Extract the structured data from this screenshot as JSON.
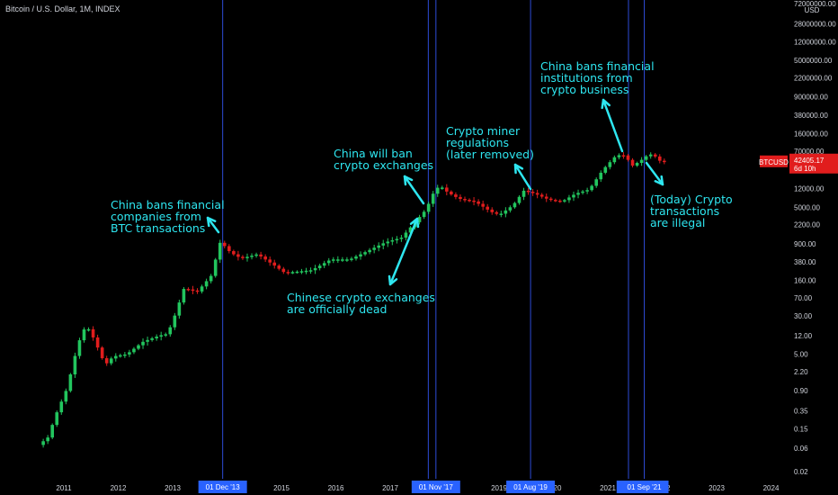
{
  "header": {
    "title": "Bitcoin / U.S. Dollar, 1M, INDEX"
  },
  "price_badge": {
    "symbol": "BTCUSD",
    "price": "42405.17",
    "countdown": "6d 10h"
  },
  "colors": {
    "up": "#22c55e",
    "down": "#e11d1d",
    "annotation": "#2ee6f0",
    "vline": "#2d4bd6",
    "badge": "#e11d1d",
    "label_bg": "#2962ff"
  },
  "chart_data": {
    "type": "candlestick",
    "y_scale": "log",
    "ylabel": "USD",
    "ylim": [
      0.015,
      140000000
    ],
    "xlim": [
      2010.55,
      2024.6
    ],
    "y_ticks": [
      "72000000.00",
      "28000000.00",
      "12000000.00",
      "5000000.00",
      "2200000.00",
      "900000.00",
      "380000.00",
      "160000.00",
      "70000.00",
      "28000.00",
      "12000.00",
      "5000.00",
      "2200.00",
      "900.00",
      "380.00",
      "160.00",
      "70.00",
      "30.00",
      "12.00",
      "5.00",
      "2.20",
      "0.90",
      "0.35",
      "0.15",
      "0.06",
      "0.02"
    ],
    "x_ticks": [
      "2011",
      "2012",
      "2013",
      "2014",
      "2015",
      "2016",
      "2017",
      "2018",
      "2019",
      "2020",
      "2021",
      "2022",
      "2023",
      "2024"
    ],
    "x_tick_positions": [
      2011,
      2012,
      2013,
      2014,
      2015,
      2016,
      2017,
      2018,
      2019,
      2020,
      2021,
      2022,
      2023,
      2024
    ],
    "vertical_lines": [
      {
        "x": 2013.92,
        "label": "01 Dec '13"
      },
      {
        "x": 2017.7,
        "label": "0"
      },
      {
        "x": 2017.84,
        "label": "01 Nov '17"
      },
      {
        "x": 2019.58,
        "label": "01 Aug '19"
      },
      {
        "x": 2021.38,
        "label": "01 M"
      },
      {
        "x": 2021.67,
        "label": "01 Sep '21"
      }
    ],
    "anchors": [
      [
        2010.58,
        0.07
      ],
      [
        2010.75,
        0.1
      ],
      [
        2010.9,
        0.3
      ],
      [
        2011.1,
        1.0
      ],
      [
        2011.3,
        8
      ],
      [
        2011.45,
        20
      ],
      [
        2011.6,
        10
      ],
      [
        2011.8,
        3
      ],
      [
        2011.95,
        4.5
      ],
      [
        2012.2,
        5.0
      ],
      [
        2012.5,
        9
      ],
      [
        2012.8,
        12
      ],
      [
        2012.95,
        13
      ],
      [
        2013.1,
        35
      ],
      [
        2013.25,
        110
      ],
      [
        2013.5,
        95
      ],
      [
        2013.75,
        200
      ],
      [
        2013.92,
        1000
      ],
      [
        2014.1,
        600
      ],
      [
        2014.3,
        450
      ],
      [
        2014.6,
        550
      ],
      [
        2014.9,
        330
      ],
      [
        2015.1,
        230
      ],
      [
        2015.3,
        240
      ],
      [
        2015.6,
        260
      ],
      [
        2015.95,
        430
      ],
      [
        2016.3,
        430
      ],
      [
        2016.6,
        620
      ],
      [
        2016.95,
        960
      ],
      [
        2017.25,
        1200
      ],
      [
        2017.5,
        2500
      ],
      [
        2017.7,
        4500
      ],
      [
        2017.84,
        10000
      ],
      [
        2017.95,
        14000
      ],
      [
        2018.1,
        10000
      ],
      [
        2018.3,
        7500
      ],
      [
        2018.6,
        6500
      ],
      [
        2018.9,
        4000
      ],
      [
        2019.05,
        3500
      ],
      [
        2019.3,
        5500
      ],
      [
        2019.5,
        11000
      ],
      [
        2019.7,
        9500
      ],
      [
        2019.95,
        7200
      ],
      [
        2020.2,
        6500
      ],
      [
        2020.45,
        9500
      ],
      [
        2020.7,
        11500
      ],
      [
        2020.95,
        29000
      ],
      [
        2021.2,
        58000
      ],
      [
        2021.35,
        57000
      ],
      [
        2021.5,
        35000
      ],
      [
        2021.67,
        47000
      ],
      [
        2021.8,
        61000
      ],
      [
        2021.9,
        57000
      ],
      [
        2021.96,
        46000
      ],
      [
        2022.05,
        42405.17
      ]
    ]
  },
  "annotations": [
    {
      "id": "a1",
      "text": "China bans financial\ncompanies from\nBTC transactions"
    },
    {
      "id": "a2",
      "text": "China will ban\ncrypto exchanges"
    },
    {
      "id": "a3",
      "text": "Chinese crypto exchanges\nare officially dead"
    },
    {
      "id": "a4",
      "text": "Crypto miner\nregulations\n(later removed)"
    },
    {
      "id": "a5",
      "text": "China bans financial\ninstitutions from\ncrypto business"
    },
    {
      "id": "a6",
      "text": "(Today) Crypto\ntransactions\nare illegal"
    }
  ]
}
